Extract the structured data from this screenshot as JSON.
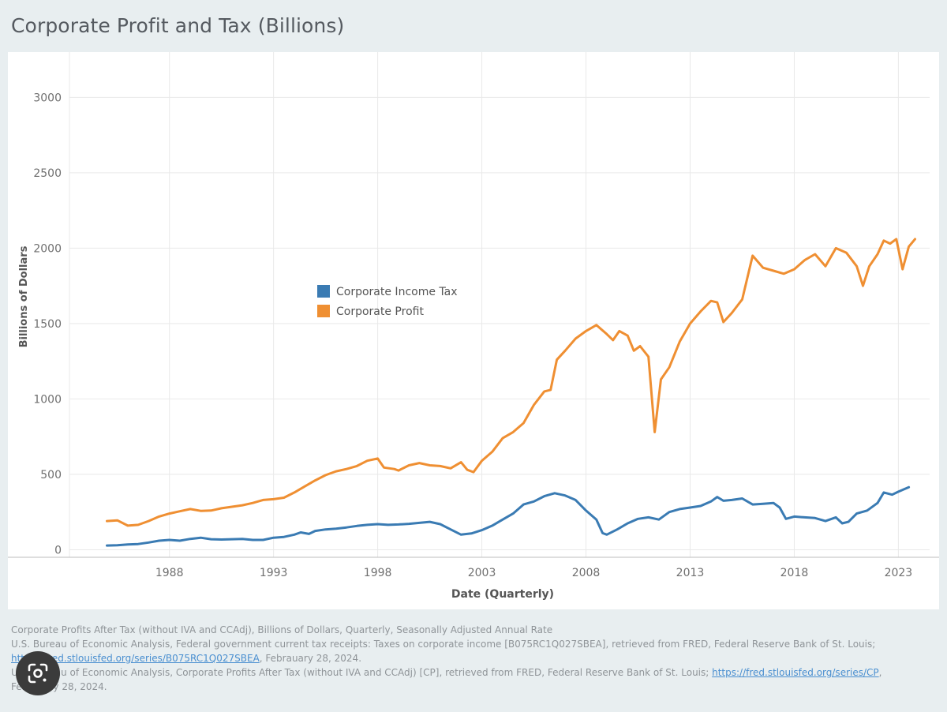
{
  "page": {
    "title": "Corporate Profit and Tax (Billions)"
  },
  "colors": {
    "tax": "#3a7bb3",
    "profit": "#ef8f32",
    "grid": "#e9e9e9",
    "axis_text": "#6f6f6f"
  },
  "source": {
    "line1": "Corporate Profits After Tax (without IVA and CCAdj), Billions of Dollars, Quarterly, Seasonally Adjusted Annual Rate",
    "line2": "U.S. Bureau of Economic Analysis, Federal government current tax receipts: Taxes on corporate income [B075RC1Q027SBEA], retrieved from FRED, Federal Reserve Bank of St. Louis;",
    "link1": "https://fred.stlouisfed.org/series/B075RC1Q027SBEA",
    "line3_tail": ", Febrauary 28, 2024.",
    "line4": "U.S. Bureau of Economic Analysis, Corporate Profits After Tax (without IVA and CCAdj) [CP], retrieved from FRED, Federal Reserve Bank of St. Louis;",
    "link2": "https://fred.stlouisfed.org/series/CP",
    "line4_tail": ",",
    "line5": "Febrauary 28, 2024."
  },
  "overlay": {
    "icon": "google-lens-icon"
  },
  "chart_data": {
    "type": "line",
    "xlabel": "Date (Quarterly)",
    "ylabel": "Billions of Dollars",
    "xlim": [
      1983.2,
      2024.5
    ],
    "ylim": [
      -50,
      3300
    ],
    "x_ticks": [
      1988,
      1993,
      1998,
      2003,
      2008,
      2013,
      2018,
      2023
    ],
    "y_ticks": [
      0,
      500,
      1000,
      1500,
      2000,
      2500,
      3000
    ],
    "grid": true,
    "legend_position": "center-left",
    "series": [
      {
        "name": "Corporate Income Tax",
        "color": "#3a7bb3",
        "points": [
          [
            1985.0,
            28
          ],
          [
            1985.5,
            30
          ],
          [
            1986.0,
            35
          ],
          [
            1986.5,
            38
          ],
          [
            1987.0,
            48
          ],
          [
            1987.5,
            60
          ],
          [
            1988.0,
            65
          ],
          [
            1988.5,
            60
          ],
          [
            1989.0,
            72
          ],
          [
            1989.5,
            80
          ],
          [
            1990.0,
            70
          ],
          [
            1990.5,
            68
          ],
          [
            1991.0,
            70
          ],
          [
            1991.5,
            72
          ],
          [
            1992.0,
            65
          ],
          [
            1992.5,
            65
          ],
          [
            1993.0,
            80
          ],
          [
            1993.5,
            85
          ],
          [
            1994.0,
            100
          ],
          [
            1994.3,
            115
          ],
          [
            1994.7,
            105
          ],
          [
            1995.0,
            125
          ],
          [
            1995.5,
            135
          ],
          [
            1996.0,
            140
          ],
          [
            1996.5,
            148
          ],
          [
            1997.0,
            158
          ],
          [
            1997.5,
            165
          ],
          [
            1998.0,
            170
          ],
          [
            1998.5,
            165
          ],
          [
            1999.0,
            168
          ],
          [
            1999.5,
            172
          ],
          [
            2000.0,
            178
          ],
          [
            2000.5,
            185
          ],
          [
            2001.0,
            170
          ],
          [
            2001.5,
            135
          ],
          [
            2002.0,
            100
          ],
          [
            2002.5,
            108
          ],
          [
            2003.0,
            130
          ],
          [
            2003.5,
            160
          ],
          [
            2004.0,
            200
          ],
          [
            2004.5,
            240
          ],
          [
            2005.0,
            300
          ],
          [
            2005.5,
            320
          ],
          [
            2006.0,
            355
          ],
          [
            2006.5,
            375
          ],
          [
            2007.0,
            360
          ],
          [
            2007.5,
            330
          ],
          [
            2008.0,
            260
          ],
          [
            2008.5,
            200
          ],
          [
            2008.8,
            110
          ],
          [
            2009.0,
            100
          ],
          [
            2009.5,
            135
          ],
          [
            2010.0,
            175
          ],
          [
            2010.5,
            205
          ],
          [
            2011.0,
            215
          ],
          [
            2011.5,
            200
          ],
          [
            2012.0,
            250
          ],
          [
            2012.5,
            270
          ],
          [
            2013.0,
            280
          ],
          [
            2013.5,
            290
          ],
          [
            2014.0,
            320
          ],
          [
            2014.3,
            350
          ],
          [
            2014.6,
            325
          ],
          [
            2015.0,
            330
          ],
          [
            2015.5,
            340
          ],
          [
            2016.0,
            300
          ],
          [
            2016.5,
            305
          ],
          [
            2017.0,
            310
          ],
          [
            2017.3,
            280
          ],
          [
            2017.6,
            205
          ],
          [
            2018.0,
            220
          ],
          [
            2018.5,
            215
          ],
          [
            2019.0,
            210
          ],
          [
            2019.5,
            190
          ],
          [
            2020.0,
            215
          ],
          [
            2020.3,
            175
          ],
          [
            2020.6,
            185
          ],
          [
            2021.0,
            240
          ],
          [
            2021.5,
            260
          ],
          [
            2022.0,
            310
          ],
          [
            2022.3,
            380
          ],
          [
            2022.7,
            365
          ],
          [
            2023.0,
            385
          ],
          [
            2023.5,
            415
          ]
        ]
      },
      {
        "name": "Corporate Profit",
        "color": "#ef8f32",
        "points": [
          [
            1985.0,
            190
          ],
          [
            1985.5,
            195
          ],
          [
            1986.0,
            160
          ],
          [
            1986.5,
            165
          ],
          [
            1987.0,
            190
          ],
          [
            1987.5,
            220
          ],
          [
            1988.0,
            240
          ],
          [
            1988.5,
            255
          ],
          [
            1989.0,
            270
          ],
          [
            1989.5,
            258
          ],
          [
            1990.0,
            260
          ],
          [
            1990.5,
            275
          ],
          [
            1991.0,
            285
          ],
          [
            1991.5,
            295
          ],
          [
            1992.0,
            310
          ],
          [
            1992.5,
            330
          ],
          [
            1993.0,
            335
          ],
          [
            1993.5,
            345
          ],
          [
            1994.0,
            380
          ],
          [
            1994.5,
            420
          ],
          [
            1995.0,
            460
          ],
          [
            1995.5,
            495
          ],
          [
            1996.0,
            520
          ],
          [
            1996.5,
            535
          ],
          [
            1997.0,
            555
          ],
          [
            1997.5,
            590
          ],
          [
            1998.0,
            605
          ],
          [
            1998.3,
            545
          ],
          [
            1998.8,
            535
          ],
          [
            1999.0,
            525
          ],
          [
            1999.5,
            560
          ],
          [
            2000.0,
            575
          ],
          [
            2000.5,
            560
          ],
          [
            2001.0,
            555
          ],
          [
            2001.5,
            540
          ],
          [
            2002.0,
            580
          ],
          [
            2002.3,
            530
          ],
          [
            2002.6,
            515
          ],
          [
            2003.0,
            590
          ],
          [
            2003.5,
            650
          ],
          [
            2004.0,
            740
          ],
          [
            2004.5,
            780
          ],
          [
            2005.0,
            840
          ],
          [
            2005.5,
            960
          ],
          [
            2006.0,
            1050
          ],
          [
            2006.3,
            1060
          ],
          [
            2006.6,
            1260
          ],
          [
            2007.0,
            1320
          ],
          [
            2007.5,
            1400
          ],
          [
            2008.0,
            1450
          ],
          [
            2008.5,
            1490
          ],
          [
            2009.0,
            1430
          ],
          [
            2009.3,
            1390
          ],
          [
            2009.6,
            1450
          ],
          [
            2010.0,
            1420
          ],
          [
            2010.3,
            1320
          ],
          [
            2010.6,
            1350
          ],
          [
            2011.0,
            1280
          ],
          [
            2011.3,
            780
          ],
          [
            2011.6,
            1130
          ],
          [
            2012.0,
            1210
          ],
          [
            2012.5,
            1380
          ],
          [
            2013.0,
            1500
          ],
          [
            2013.5,
            1580
          ],
          [
            2014.0,
            1650
          ],
          [
            2014.3,
            1640
          ],
          [
            2014.6,
            1510
          ],
          [
            2015.0,
            1570
          ],
          [
            2015.5,
            1660
          ],
          [
            2016.0,
            1950
          ],
          [
            2016.5,
            1870
          ],
          [
            2017.0,
            1850
          ],
          [
            2017.5,
            1830
          ],
          [
            2018.0,
            1860
          ],
          [
            2018.5,
            1920
          ],
          [
            2019.0,
            1960
          ],
          [
            2019.5,
            1880
          ],
          [
            2020.0,
            2000
          ],
          [
            2020.5,
            1970
          ],
          [
            2021.0,
            1880
          ],
          [
            2021.3,
            1750
          ],
          [
            2021.6,
            1880
          ],
          [
            2022.0,
            1960
          ],
          [
            2022.3,
            2050
          ],
          [
            2022.6,
            2030
          ],
          [
            2022.9,
            2060
          ],
          [
            2023.2,
            1860
          ],
          [
            2023.5,
            2010
          ],
          [
            2023.8,
            2060
          ]
        ]
      }
    ]
  }
}
